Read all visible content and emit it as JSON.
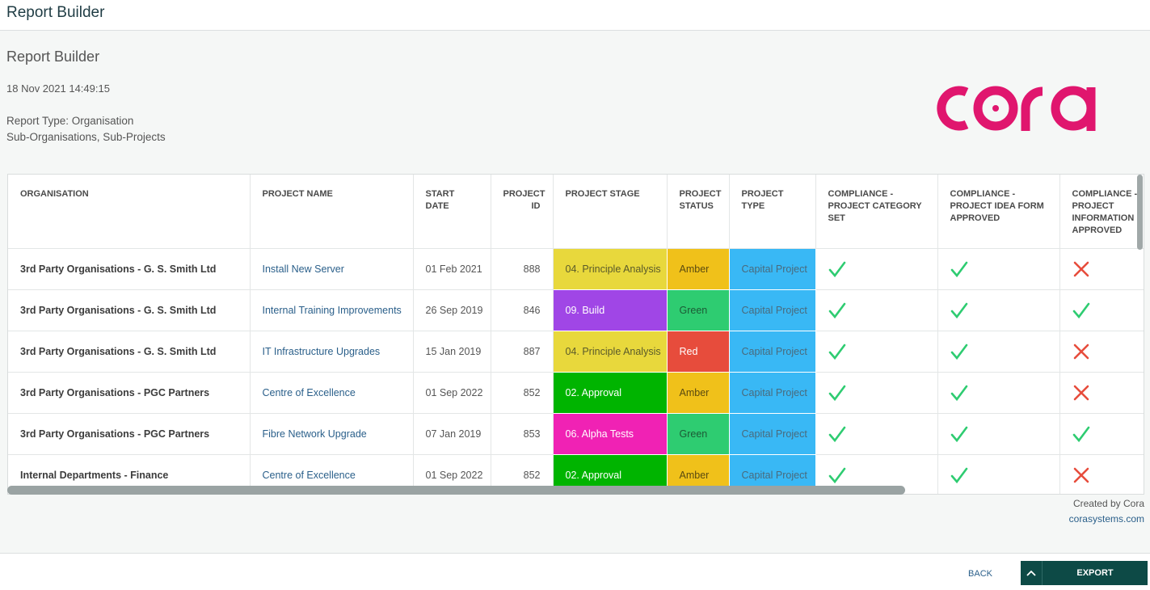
{
  "topbar": {
    "title": "Report Builder"
  },
  "report": {
    "title": "Report Builder",
    "date": "18 Nov 2021 14:49:15",
    "type": "Report Type: Organisation",
    "sub": "Sub-Organisations, Sub-Projects"
  },
  "logo": {
    "text": "cora",
    "color": "#e0166e"
  },
  "table": {
    "headers": [
      "ORGANISATION",
      "PROJECT NAME",
      "START DATE",
      "PROJECT ID",
      "PROJECT STAGE",
      "PROJECT STATUS",
      "PROJECT TYPE",
      "COMPLIANCE - PROJECT CATEGORY SET",
      "COMPLIANCE - PROJECT IDEA FORM APPROVED",
      "COMPLIANCE - PROJECT INFORMATION APPROVED"
    ],
    "rows": [
      {
        "org": "3rd Party Organisations - G. S. Smith Ltd",
        "project": "Install New Server",
        "start": "01 Feb 2021",
        "id": "888",
        "stage": "04. Principle Analysis",
        "stage_color": "#e8d83c",
        "stage_text": "#5a5a2a",
        "status": "Amber",
        "status_color": "#f0c11a",
        "status_text": "#5a4a10",
        "type": "Capital Project",
        "type_color": "#39b8f5",
        "c1": true,
        "c2": true,
        "c3": false
      },
      {
        "org": "3rd Party Organisations - G. S. Smith Ltd",
        "project": "Internal Training Improvements",
        "start": "26 Sep 2019",
        "id": "846",
        "stage": "09. Build",
        "stage_color": "#a046e6",
        "stage_text": "#ffffff",
        "status": "Green",
        "status_color": "#2ecc71",
        "status_text": "#1c5a35",
        "type": "Capital Project",
        "type_color": "#39b8f5",
        "c1": true,
        "c2": true,
        "c3": true
      },
      {
        "org": "3rd Party Organisations - G. S. Smith Ltd",
        "project": "IT Infrastructure Upgrades",
        "start": "15 Jan 2019",
        "id": "887",
        "stage": "04. Principle Analysis",
        "stage_color": "#e8d83c",
        "stage_text": "#5a5a2a",
        "status": "Red",
        "status_color": "#e74c3c",
        "status_text": "#ffffff",
        "type": "Capital Project",
        "type_color": "#39b8f5",
        "c1": true,
        "c2": true,
        "c3": false
      },
      {
        "org": "3rd Party Organisations - PGC Partners",
        "project": "Centre of Excellence",
        "start": "01 Sep 2022",
        "id": "852",
        "stage": "02. Approval",
        "stage_color": "#00b400",
        "stage_text": "#ffffff",
        "status": "Amber",
        "status_color": "#f0c11a",
        "status_text": "#5a4a10",
        "type": "Capital Project",
        "type_color": "#39b8f5",
        "c1": true,
        "c2": true,
        "c3": false
      },
      {
        "org": "3rd Party Organisations - PGC Partners",
        "project": "Fibre Network Upgrade",
        "start": "07 Jan 2019",
        "id": "853",
        "stage": "06. Alpha Tests",
        "stage_color": "#f022b4",
        "stage_text": "#ffffff",
        "status": "Green",
        "status_color": "#2ecc71",
        "status_text": "#1c5a35",
        "type": "Capital Project",
        "type_color": "#39b8f5",
        "c1": true,
        "c2": true,
        "c3": true
      },
      {
        "org": "Internal Departments - Finance",
        "project": "Centre of Excellence",
        "start": "01 Sep 2022",
        "id": "852",
        "stage": "02. Approval",
        "stage_color": "#00b400",
        "stage_text": "#ffffff",
        "status": "Amber",
        "status_color": "#f0c11a",
        "status_text": "#5a4a10",
        "type": "Capital Project",
        "type_color": "#39b8f5",
        "c1": true,
        "c2": true,
        "c3": false
      }
    ]
  },
  "icons": {
    "check_color": "#2ecc71",
    "cross_color": "#e74c3c"
  },
  "credits": {
    "created": "Created by Cora",
    "site": "corasystems.com"
  },
  "footer": {
    "back_label": "BACK",
    "export_label": "EXPORT",
    "export_color": "#0d4a46"
  }
}
